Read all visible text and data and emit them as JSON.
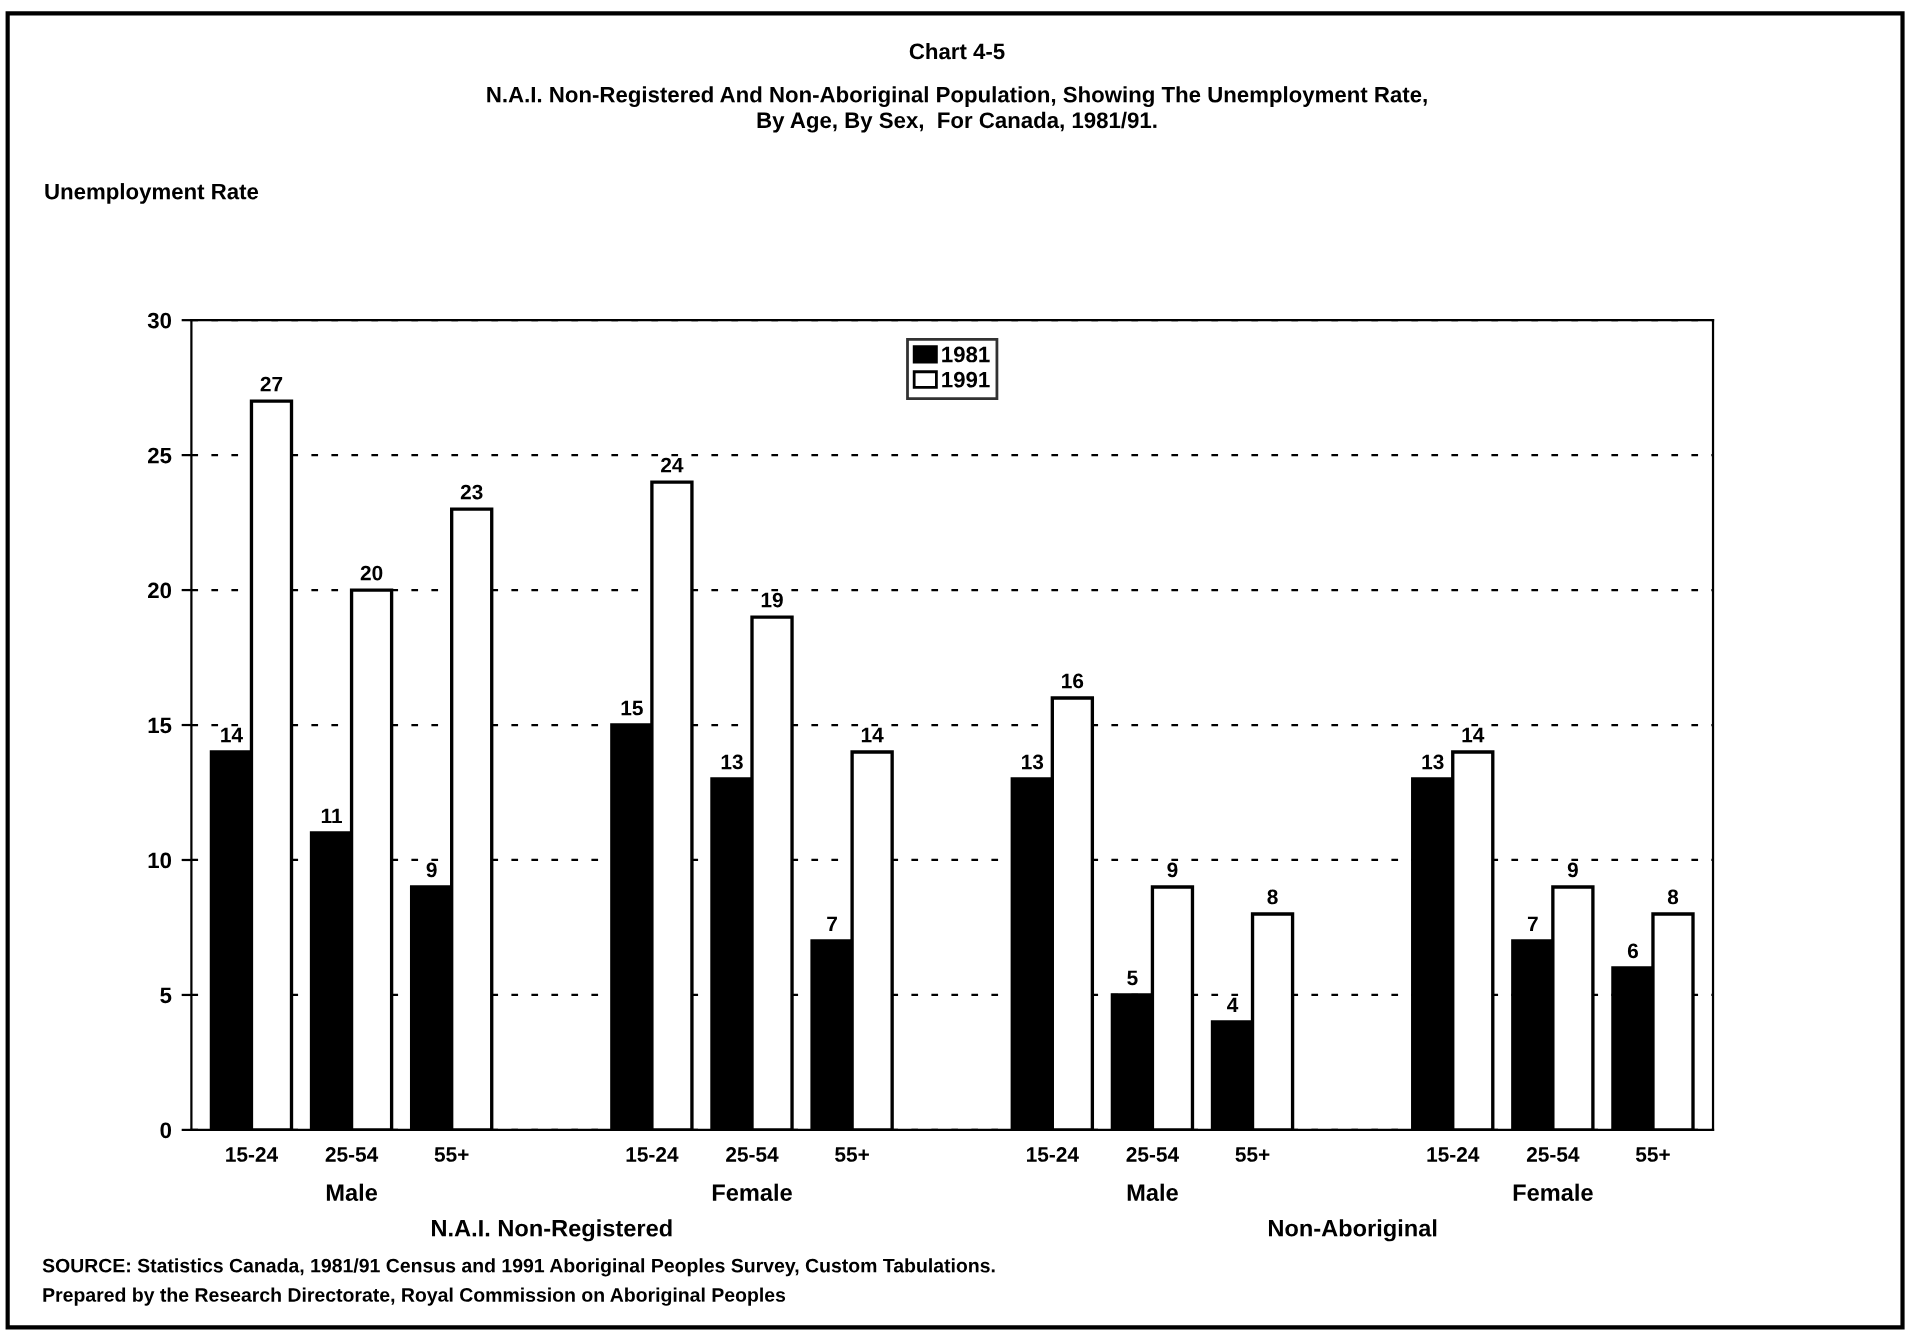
{
  "chart_data": {
    "type": "bar",
    "title": "Chart 4-5",
    "subtitle": "N.A.I. Non-Registered And Non-Aboriginal Population, Showing The Unemployment Rate,\nBy Age, By Sex,  For Canada, 1981/91.",
    "ylabel": "Unemployment Rate",
    "categories": [
      "15-24",
      "25-54",
      "55+",
      null,
      "15-24",
      "25-54",
      "55+",
      null,
      "15-24",
      "25-54",
      "55+",
      null,
      "15-24",
      "25-54",
      "55+"
    ],
    "series": [
      {
        "name": "1981",
        "color": "#000000",
        "values": [
          14,
          11,
          9,
          null,
          15,
          13,
          7,
          null,
          13,
          5,
          4,
          null,
          13,
          7,
          6
        ]
      },
      {
        "name": "1991",
        "color": "#ffffff",
        "values": [
          27,
          20,
          23,
          null,
          24,
          19,
          14,
          null,
          16,
          9,
          8,
          null,
          14,
          9,
          8
        ]
      }
    ],
    "ylim": [
      0,
      30
    ],
    "yticks": [
      0,
      5,
      10,
      15,
      20,
      25,
      30
    ],
    "grid": "y",
    "legend": "top",
    "data_labels": true,
    "annotations": [
      "Male",
      "Female",
      "Male",
      "Female",
      "N.A.I. Non-Registered",
      "Non-Aboriginal",
      "SOURCE: Statistics Canada, 1981/91 Census and 1991 Aboriginal Peoples Survey, Custom Tabulations.",
      "Prepared by the Research Directorate, Royal Commission on Aboriginal Peoples"
    ]
  }
}
